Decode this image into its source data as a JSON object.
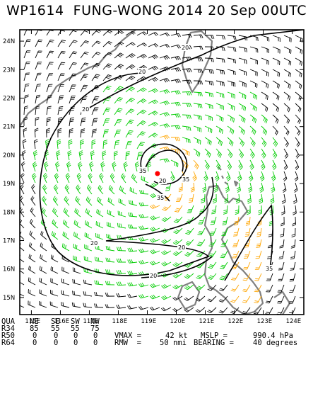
{
  "title": "WP1614  FUNG-WONG 2014 20 Sep 00UTC",
  "lat_labels": [
    "24N",
    "23N",
    "22N",
    "21N",
    "20N",
    "19N",
    "18N",
    "17N",
    "16N",
    "15N"
  ],
  "lon_labels": [
    "115E",
    "116E",
    "117E",
    "118E",
    "119E",
    "120E",
    "121E",
    "122E",
    "123E",
    "124E"
  ],
  "contour_labels": {
    "c20": "20",
    "c35": "35"
  },
  "storm_center": {
    "lon": 119.35,
    "lat": 19.35,
    "color": "#ff0000"
  },
  "colors": {
    "barb_weak": "#000000",
    "barb_ts": "#00cc00",
    "barb_strong": "#ffa500",
    "land": "#808080",
    "contour": "#000000"
  },
  "stats": {
    "header": [
      "QUA",
      "NE",
      "SE",
      "SW",
      "NW"
    ],
    "r34": [
      "R34",
      "85",
      "55",
      "55",
      "75"
    ],
    "r50": [
      "R50",
      "0",
      "0",
      "0",
      "0"
    ],
    "r64": [
      "R64",
      "0",
      "0",
      "0",
      "0"
    ],
    "vmax_label": "VMAX =",
    "vmax_value": "42 kt",
    "mslp_label": "MSLP =",
    "mslp_value": "990.4 hPa",
    "rmw_label": "RMW  =",
    "rmw_value": "50 nmi",
    "bearing_label": "BEARING =",
    "bearing_value": "40 degrees"
  }
}
